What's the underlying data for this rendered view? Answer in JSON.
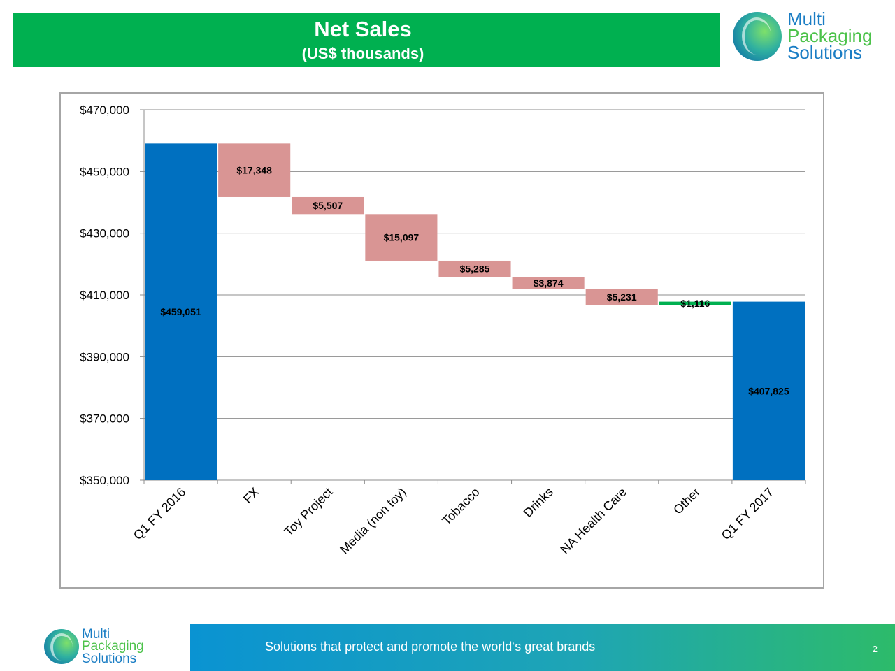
{
  "header": {
    "title": "Net Sales",
    "subtitle": "(US$ thousands)"
  },
  "logo": {
    "line1": "Multi",
    "line2": "Packaging",
    "line3": "Solutions"
  },
  "footer": {
    "tagline": "Solutions that protect and promote the world‘s great brands",
    "page": "2"
  },
  "colors": {
    "total": "#0070c0",
    "decrease": "#d99594",
    "increase": "#00b050",
    "header": "#00b050"
  },
  "chart_data": {
    "type": "waterfall",
    "title": "Net Sales",
    "subtitle": "(US$ thousands)",
    "categories": [
      "Q1 FY 2016",
      "FX",
      "Toy Project",
      "Media (non toy)",
      "Tobacco",
      "Drinks",
      "NA Health Care",
      "Other",
      "Q1 FY 2017"
    ],
    "values": [
      459051,
      -17348,
      -5507,
      -15097,
      -5285,
      -3874,
      -5231,
      1116,
      407825
    ],
    "kinds": [
      "total",
      "delta",
      "delta",
      "delta",
      "delta",
      "delta",
      "delta",
      "delta",
      "total"
    ],
    "labels": [
      "$459,051",
      "$17,348",
      "$5,507",
      "$15,097",
      "$5,285",
      "$3,874",
      "$5,231",
      "$1,116",
      "$407,825"
    ],
    "ylim": [
      350000,
      470000
    ],
    "yticks": [
      350000,
      370000,
      390000,
      410000,
      430000,
      450000,
      470000
    ],
    "ytick_labels": [
      "$350,000",
      "$370,000",
      "$390,000",
      "$410,000",
      "$430,000",
      "$450,000",
      "$470,000"
    ],
    "grid": true
  }
}
